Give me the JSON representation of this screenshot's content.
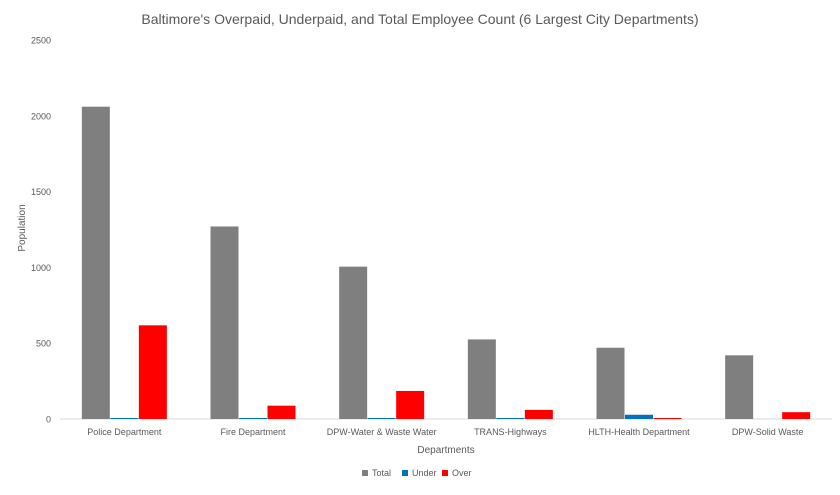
{
  "chart_data": {
    "type": "bar",
    "title": "Baltimore's Overpaid, Underpaid, and Total Employee Count (6 Largest City Departments)",
    "xlabel": "Departments",
    "ylabel": "Population",
    "ylim": [
      0,
      2500
    ],
    "yticks": [
      0,
      500,
      1000,
      1500,
      2000,
      2500
    ],
    "grid": false,
    "legend_position": "bottom",
    "categories": [
      "Police Department",
      "Fire Department",
      "DPW-Water & Waste Water",
      "TRANS-Highways",
      "HLTH-Health Department",
      "DPW-Solid Waste"
    ],
    "series": [
      {
        "name": "Total",
        "color": "#7f7f7f",
        "values": [
          2060,
          1270,
          1005,
          525,
          470,
          420
        ]
      },
      {
        "name": "Under",
        "color": "#0070c0",
        "values": [
          3,
          3,
          4,
          2,
          28,
          0
        ]
      },
      {
        "name": "Over",
        "color": "#ff0000",
        "values": [
          618,
          88,
          185,
          60,
          5,
          45
        ]
      }
    ]
  }
}
